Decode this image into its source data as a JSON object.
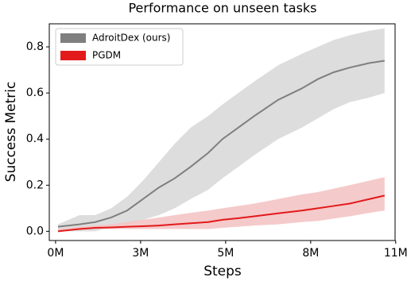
{
  "chart_data": {
    "type": "line",
    "title": "Performance on unseen tasks",
    "xlabel": "Steps",
    "ylabel": "Success Metric",
    "x": [
      76000,
      757000,
      1262000,
      1766000,
      2271000,
      2776000,
      3280000,
      3785000,
      4290000,
      4845000,
      5299000,
      5804000,
      6308000,
      7065000,
      7822000,
      8327000,
      8832000,
      9336000,
      9967000,
      10447000
    ],
    "series": [
      {
        "name": "AdroitDex (ours)",
        "color": "#7f7f7f",
        "band_color": "#d9d9d9",
        "values": [
          0.02,
          0.03,
          0.04,
          0.06,
          0.09,
          0.14,
          0.19,
          0.23,
          0.28,
          0.34,
          0.4,
          0.45,
          0.5,
          0.57,
          0.62,
          0.66,
          0.69,
          0.71,
          0.73,
          0.74
        ],
        "upper": [
          0.03,
          0.07,
          0.07,
          0.1,
          0.15,
          0.22,
          0.3,
          0.38,
          0.45,
          0.5,
          0.55,
          0.6,
          0.65,
          0.72,
          0.77,
          0.8,
          0.83,
          0.85,
          0.87,
          0.88
        ],
        "lower": [
          0.0,
          0.0,
          0.0,
          0.02,
          0.03,
          0.05,
          0.07,
          0.1,
          0.14,
          0.18,
          0.23,
          0.28,
          0.33,
          0.4,
          0.45,
          0.49,
          0.53,
          0.56,
          0.58,
          0.6
        ]
      },
      {
        "name": "PGDM",
        "color": "#e31a1c",
        "band_color": "#f4c4c4",
        "values": [
          0.0,
          0.01,
          0.015,
          0.017,
          0.02,
          0.022,
          0.025,
          0.03,
          0.035,
          0.04,
          0.05,
          0.057,
          0.065,
          0.078,
          0.09,
          0.1,
          0.11,
          0.12,
          0.14,
          0.155
        ],
        "upper": [
          0.01,
          0.02,
          0.025,
          0.03,
          0.04,
          0.05,
          0.06,
          0.07,
          0.08,
          0.09,
          0.1,
          0.11,
          0.12,
          0.14,
          0.16,
          0.17,
          0.185,
          0.2,
          0.22,
          0.235
        ],
        "lower": [
          0.0,
          0.005,
          0.01,
          0.01,
          0.01,
          0.01,
          0.01,
          0.01,
          0.01,
          0.01,
          0.015,
          0.02,
          0.025,
          0.03,
          0.04,
          0.045,
          0.055,
          0.065,
          0.08,
          0.09
        ]
      }
    ],
    "xlim": [
      -200000,
      10780000
    ],
    "ylim": [
      -0.04,
      0.9
    ],
    "xticks": [
      {
        "value": 0,
        "label": "0M"
      },
      {
        "value": 2700000,
        "label": "3M"
      },
      {
        "value": 5400000,
        "label": "5M"
      },
      {
        "value": 8100000,
        "label": "8M"
      },
      {
        "value": 10800000,
        "label": "11M"
      }
    ],
    "yticks": [
      {
        "value": 0,
        "label": "0.0"
      },
      0.2,
      0.4,
      0.6,
      0.8
    ],
    "legend": "upper left",
    "grid": false
  }
}
